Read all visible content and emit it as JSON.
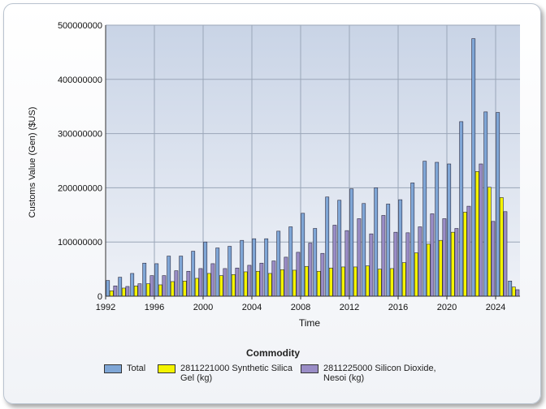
{
  "chart_data": {
    "type": "bar",
    "title": "",
    "xlabel": "Time",
    "ylabel": "Customs Value (Gen) ($US)",
    "ylim": [
      0,
      500000000
    ],
    "yticks": [
      0,
      100000000,
      200000000,
      300000000,
      400000000,
      500000000
    ],
    "ytick_labels": [
      "0",
      "100000000",
      "200000000",
      "300000000",
      "400000000",
      "500000000"
    ],
    "xtick_labels": [
      "1992",
      "1996",
      "2000",
      "2004",
      "2008",
      "2012",
      "2016",
      "2020",
      "2024"
    ],
    "categories": [
      "1992",
      "1993",
      "1994",
      "1995",
      "1996",
      "1997",
      "1998",
      "1999",
      "2000",
      "2001",
      "2002",
      "2003",
      "2004",
      "2005",
      "2006",
      "2007",
      "2008",
      "2009",
      "2010",
      "2011",
      "2012",
      "2013",
      "2014",
      "2015",
      "2016",
      "2017",
      "2018",
      "2019",
      "2020",
      "2021",
      "2022",
      "2023",
      "2024",
      "2025"
    ],
    "series": [
      {
        "name": "Total",
        "color": "#7fa6d6",
        "values": [
          29000000,
          35000000,
          42000000,
          61000000,
          60000000,
          74000000,
          74000000,
          83000000,
          100000000,
          89000000,
          92000000,
          103000000,
          106000000,
          106000000,
          120000000,
          128000000,
          153000000,
          125000000,
          183000000,
          177000000,
          198000000,
          171000000,
          200000000,
          170000000,
          178000000,
          209000000,
          249000000,
          247000000,
          244000000,
          322000000,
          475000000,
          340000000,
          339000000,
          28000000
        ]
      },
      {
        "name": "2811221000 Synthetic Silica Gel (kg)",
        "color": "#f4f400",
        "values": [
          10000000,
          15000000,
          19000000,
          23000000,
          21000000,
          27000000,
          28000000,
          33000000,
          42000000,
          38000000,
          40000000,
          45000000,
          46000000,
          42000000,
          49000000,
          48000000,
          55000000,
          46000000,
          52000000,
          54000000,
          54000000,
          56000000,
          50000000,
          51000000,
          62000000,
          80000000,
          96000000,
          103000000,
          118000000,
          155000000,
          230000000,
          201000000,
          182000000,
          17000000
        ]
      },
      {
        "name": "2811225000 Silicon Dioxide, Nesoi (kg)",
        "color": "#9a8dc6",
        "values": [
          19000000,
          18000000,
          23000000,
          38000000,
          38000000,
          47000000,
          46000000,
          51000000,
          60000000,
          51000000,
          52000000,
          57000000,
          61000000,
          65000000,
          72000000,
          81000000,
          98000000,
          79000000,
          131000000,
          121000000,
          143000000,
          115000000,
          149000000,
          118000000,
          117000000,
          128000000,
          152000000,
          143000000,
          125000000,
          166000000,
          244000000,
          138000000,
          156000000,
          12000000
        ]
      }
    ],
    "legend_title": "Commodity",
    "legend_position": "bottom"
  }
}
